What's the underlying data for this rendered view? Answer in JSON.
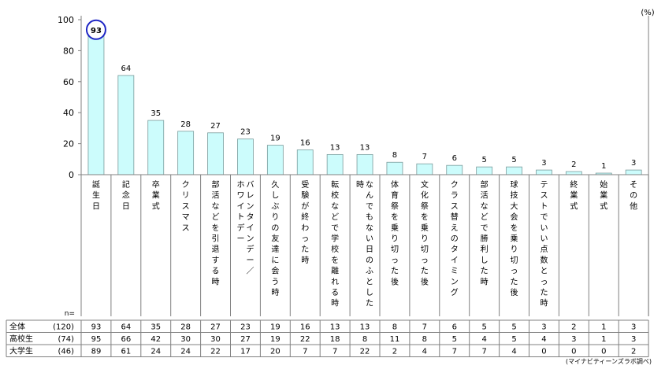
{
  "chart_data": {
    "type": "bar",
    "unit_label": "(%)",
    "ylim": [
      0,
      100
    ],
    "yticks": [
      0,
      20,
      40,
      60,
      80,
      100
    ],
    "grid": false,
    "highlight_index": 0,
    "colors": {
      "bar_fill": "#ccfcfc",
      "bar_stroke": "#7a9c9c",
      "highlight_circle": "#1d25c4",
      "axis": "#808080"
    },
    "categories": [
      "誕生日",
      "記念日",
      "卒業式",
      "クリスマス",
      "部活などを引退する時",
      "バレンタインデー／ホワイトデー",
      "久しぶりの友達に会う時",
      "受験が終わった時",
      "転校などで学校を離れる時",
      "なんでもない日のふとした時",
      "体育祭を乗り切った後",
      "文化祭を乗り切った後",
      "クラス替えのタイミング",
      "部活などで勝利した時",
      "球技大会を乗り切った後",
      "テストでいい点数とった時",
      "終業式",
      "始業式",
      "その他"
    ],
    "category_columns": [
      [
        "誕生日"
      ],
      [
        "記念日"
      ],
      [
        "卒業式"
      ],
      [
        "クリスマス"
      ],
      [
        "部活などを引退する時"
      ],
      [
        "ホワイトデー",
        "バレンタインデー／"
      ],
      [
        "久しぶりの友達に会う時"
      ],
      [
        "受験が終わった時"
      ],
      [
        "転校などで学校を離れる時"
      ],
      [
        "時",
        "なんでもない日のふとした"
      ],
      [
        "体育祭を乗り切った後"
      ],
      [
        "文化祭を乗り切った後"
      ],
      [
        "クラス替えのタイミング"
      ],
      [
        "部活などで勝利した時"
      ],
      [
        "球技大会を乗り切った後"
      ],
      [
        "テストでいい点数とった時"
      ],
      [
        "終業式"
      ],
      [
        "始業式"
      ],
      [
        "その他"
      ]
    ],
    "values": [
      93,
      64,
      35,
      28,
      27,
      23,
      19,
      16,
      13,
      13,
      8,
      7,
      6,
      5,
      5,
      3,
      2,
      1,
      3
    ],
    "table": {
      "n_label": "n=",
      "rows": [
        {
          "label": "全体",
          "n": "(120)",
          "values": [
            93,
            64,
            35,
            28,
            27,
            23,
            19,
            16,
            13,
            13,
            8,
            7,
            6,
            5,
            5,
            3,
            2,
            1,
            3
          ]
        },
        {
          "label": "高校生",
          "n": "(74)",
          "values": [
            95,
            66,
            42,
            30,
            30,
            27,
            19,
            22,
            18,
            8,
            11,
            8,
            5,
            4,
            5,
            4,
            3,
            1,
            3
          ]
        },
        {
          "label": "大学生",
          "n": "(46)",
          "values": [
            89,
            61,
            24,
            24,
            22,
            17,
            20,
            7,
            7,
            22,
            2,
            4,
            7,
            7,
            4,
            0,
            0,
            0,
            2
          ]
        }
      ]
    },
    "source": "(マイナビティーンズラボ調べ)"
  }
}
